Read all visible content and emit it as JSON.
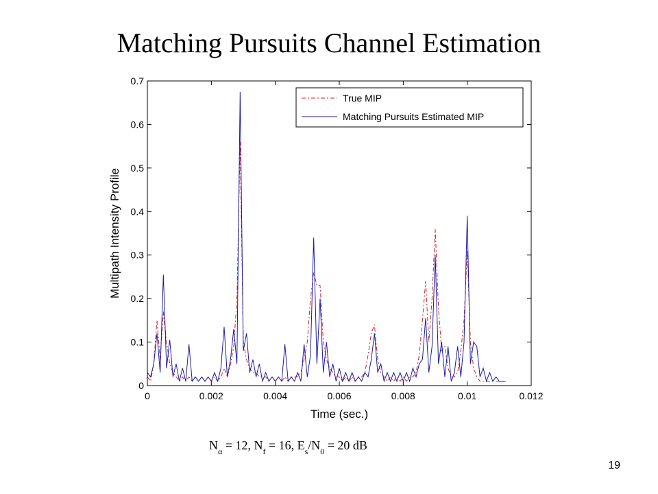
{
  "chart_data": {
    "type": "line",
    "title": "Matching Pursuits Channel Estimation",
    "xlabel": "Time (sec.)",
    "ylabel": "Multipath Intensity Profile",
    "xlim": [
      0,
      0.012
    ],
    "ylim": [
      0,
      0.7
    ],
    "xticks": [
      0,
      0.002,
      0.004,
      0.006,
      0.008,
      0.01,
      0.012
    ],
    "yticks": [
      0,
      0.1,
      0.2,
      0.3,
      0.4,
      0.5,
      0.6,
      0.7
    ],
    "legend": "northeast",
    "x": [
      0,
      0.0001,
      0.0002,
      0.0003,
      0.0004,
      0.0005,
      0.0006,
      0.0007,
      0.0008,
      0.0009,
      0.001,
      0.0011,
      0.0012,
      0.0013,
      0.0014,
      0.0015,
      0.0016,
      0.0017,
      0.0018,
      0.0019,
      0.002,
      0.0021,
      0.0022,
      0.0023,
      0.0024,
      0.0025,
      0.0026,
      0.0027,
      0.0028,
      0.0029,
      0.003,
      0.0031,
      0.0032,
      0.0033,
      0.0034,
      0.0035,
      0.0036,
      0.0037,
      0.0038,
      0.0039,
      0.004,
      0.0041,
      0.0042,
      0.0043,
      0.0044,
      0.0045,
      0.0046,
      0.0047,
      0.0048,
      0.0049,
      0.005,
      0.0051,
      0.0052,
      0.0053,
      0.0054,
      0.0055,
      0.0056,
      0.0057,
      0.0058,
      0.0059,
      0.006,
      0.0061,
      0.0062,
      0.0063,
      0.0064,
      0.0065,
      0.0066,
      0.0067,
      0.0068,
      0.0069,
      0.007,
      0.0071,
      0.0072,
      0.0073,
      0.0074,
      0.0075,
      0.0076,
      0.0077,
      0.0078,
      0.0079,
      0.008,
      0.0081,
      0.0082,
      0.0083,
      0.0084,
      0.0085,
      0.0086,
      0.0087,
      0.0088,
      0.0089,
      0.009,
      0.0091,
      0.0092,
      0.0093,
      0.0094,
      0.0095,
      0.0096,
      0.0097,
      0.0098,
      0.0099,
      0.01,
      0.0101,
      0.0102,
      0.0103,
      0.0104,
      0.0105,
      0.0106,
      0.0107,
      0.0108,
      0.0109,
      0.011,
      0.0111,
      0.0112
    ],
    "series": [
      {
        "name": "True MIP",
        "color": "#d62020",
        "dash": "6,3,2,3",
        "values": [
          0.02,
          0.01,
          0.05,
          0.15,
          0.06,
          0.17,
          0.1,
          0.05,
          0.03,
          0.02,
          0.01,
          0.02,
          0.01,
          0.02,
          0.01,
          0.02,
          0.01,
          0.02,
          0.01,
          0.02,
          0.01,
          0.02,
          0.01,
          0.02,
          0.04,
          0.02,
          0.05,
          0.09,
          0.2,
          0.56,
          0.1,
          0.06,
          0.04,
          0.03,
          0.03,
          0.02,
          0.02,
          0.02,
          0.01,
          0.02,
          0.01,
          0.02,
          0.01,
          0.02,
          0.01,
          0.02,
          0.02,
          0.02,
          0.03,
          0.06,
          0.1,
          0.2,
          0.26,
          0.23,
          0.23,
          0.1,
          0.06,
          0.04,
          0.03,
          0.02,
          0.02,
          0.01,
          0.02,
          0.01,
          0.02,
          0.01,
          0.02,
          0.02,
          0.03,
          0.07,
          0.12,
          0.14,
          0.06,
          0.03,
          0.02,
          0.01,
          0.02,
          0.01,
          0.02,
          0.01,
          0.02,
          0.01,
          0.02,
          0.02,
          0.03,
          0.07,
          0.15,
          0.24,
          0.1,
          0.2,
          0.36,
          0.18,
          0.08,
          0.09,
          0.04,
          0.02,
          0.02,
          0.03,
          0.08,
          0.15,
          0.31,
          0.1,
          0.04,
          0.02,
          0.01,
          0.01,
          0.01,
          0.01,
          0.01,
          0.01,
          0.01,
          0.01,
          0.01
        ]
      },
      {
        "name": "Matching Pursuits Estimated MIP",
        "color": "#1a1aa6",
        "dash": "",
        "values": [
          0.03,
          0.02,
          0.05,
          0.12,
          0.03,
          0.255,
          0.04,
          0.105,
          0.02,
          0.05,
          0.01,
          0.04,
          0.01,
          0.095,
          0.01,
          0.02,
          0.01,
          0.02,
          0.01,
          0.02,
          0.01,
          0.03,
          0.01,
          0.04,
          0.135,
          0.02,
          0.06,
          0.13,
          0.05,
          0.675,
          0.08,
          0.12,
          0.03,
          0.06,
          0.02,
          0.05,
          0.01,
          0.03,
          0.01,
          0.02,
          0.01,
          0.02,
          0.01,
          0.095,
          0.01,
          0.02,
          0.01,
          0.03,
          0.01,
          0.095,
          0.02,
          0.07,
          0.34,
          0.05,
          0.2,
          0.03,
          0.1,
          0.02,
          0.05,
          0.01,
          0.04,
          0.01,
          0.03,
          0.01,
          0.03,
          0.01,
          0.02,
          0.01,
          0.03,
          0.02,
          0.06,
          0.12,
          0.03,
          0.05,
          0.01,
          0.03,
          0.01,
          0.03,
          0.01,
          0.03,
          0.01,
          0.03,
          0.01,
          0.04,
          0.02,
          0.05,
          0.06,
          0.155,
          0.03,
          0.09,
          0.3,
          0.05,
          0.1,
          0.02,
          0.09,
          0.01,
          0.03,
          0.09,
          0.02,
          0.1,
          0.39,
          0.05,
          0.1,
          0.09,
          0.02,
          0.04,
          0.01,
          0.03,
          0.01,
          0.02,
          0.01,
          0.01,
          0.01
        ]
      }
    ]
  },
  "caption": [
    "N",
    "α",
    " = 12,  N",
    "f",
    " = 16,  E",
    "s",
    "/N",
    "0",
    " = 20 dB"
  ],
  "page_number": "19"
}
